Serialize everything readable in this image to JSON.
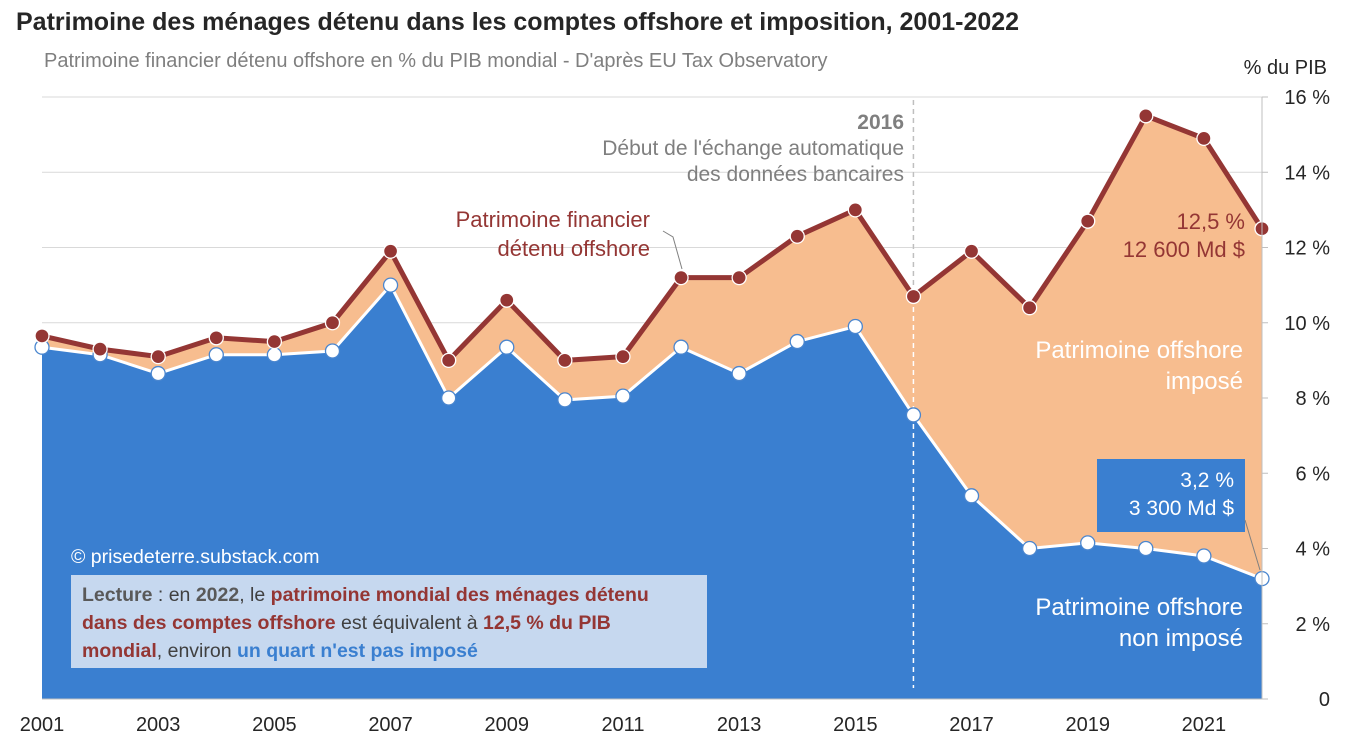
{
  "header": {
    "title": "Patrimoine des ménages détenu dans les comptes offshore et imposition, 2001-2022",
    "subtitle": "Patrimoine financier détenu offshore en % du PIB mondial - D'après EU Tax Observatory"
  },
  "colors": {
    "total_line": "#943634",
    "taxed_area": "#f7bd8f",
    "untaxed_area": "#3a7fd0",
    "axis_text": "#262626",
    "grid": "#d9d9d9"
  },
  "chart_data": {
    "type": "area",
    "title": "Patrimoine des ménages détenu dans les comptes offshore et imposition, 2001-2022",
    "subtitle": "Patrimoine financier détenu offshore en % du PIB mondial - D'après EU Tax Observatory",
    "ylabel": "% du PIB",
    "ylim": [
      0,
      16
    ],
    "yticks": [
      0,
      2,
      4,
      6,
      8,
      10,
      12,
      14,
      16
    ],
    "ytick_labels": [
      "0",
      "2 %",
      "4 %",
      "6 %",
      "8 %",
      "10 %",
      "12 %",
      "14 %",
      "16 %"
    ],
    "x": [
      2001,
      2002,
      2003,
      2004,
      2005,
      2006,
      2007,
      2008,
      2009,
      2010,
      2011,
      2012,
      2013,
      2014,
      2015,
      2016,
      2017,
      2018,
      2019,
      2020,
      2021,
      2022
    ],
    "xtick_labels": [
      "2001",
      "2003",
      "2005",
      "2007",
      "2009",
      "2011",
      "2013",
      "2015",
      "2017",
      "2019",
      "2021"
    ],
    "series": [
      {
        "name": "Patrimoine financier détenu offshore",
        "values": [
          9.65,
          9.3,
          9.1,
          9.6,
          9.5,
          10.0,
          11.9,
          9.0,
          10.6,
          9.0,
          9.1,
          11.2,
          11.2,
          12.3,
          13.0,
          10.7,
          11.9,
          10.4,
          12.7,
          15.5,
          14.9,
          12.5
        ]
      },
      {
        "name": "Patrimoine offshore non imposé",
        "values": [
          9.35,
          9.15,
          8.65,
          9.15,
          9.15,
          9.25,
          11.0,
          8.0,
          9.35,
          7.95,
          8.05,
          9.35,
          8.65,
          9.5,
          9.9,
          7.55,
          5.4,
          4.0,
          4.15,
          4.0,
          3.8,
          3.2
        ]
      }
    ],
    "area_labels": {
      "taxed": [
        "Patrimoine offshore",
        "imposé"
      ],
      "untaxed": [
        "Patrimoine offshore",
        "non imposé"
      ],
      "total": [
        "Patrimoine financier",
        "détenu offshore"
      ]
    },
    "annotations": {
      "event_year": "2016",
      "event_text": [
        "Début de l'échange automatique",
        "des données bancaires"
      ],
      "total_end": [
        "12,5 %",
        "12 600 Md $"
      ],
      "untaxed_end": [
        "3,2 %",
        "3 300 Md $"
      ]
    },
    "source": "© prisedeterre.substack.com"
  },
  "lecture": {
    "part1": "Lecture",
    "part2": " : en ",
    "part3": "2022",
    "part4": ", le ",
    "part5": "patrimoine mondial des ménages détenu dans des comptes offshore",
    "part6": " est équivalent à ",
    "part7": "12,5 %  du PIB mondial",
    "part8": ", environ ",
    "part9": "un quart n'est pas imposé"
  }
}
